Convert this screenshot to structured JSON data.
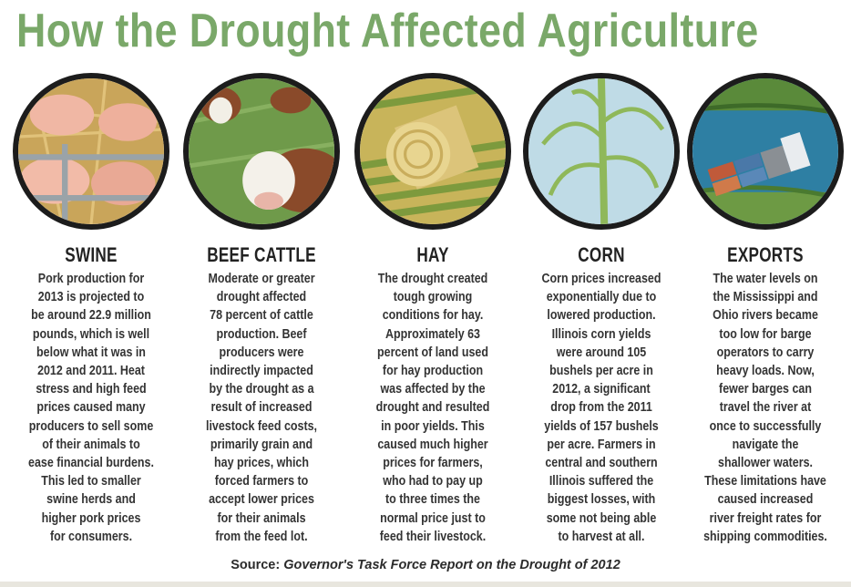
{
  "title": "How the Drought Affected Agriculture",
  "colors": {
    "title": "#7aa869",
    "text": "#2b2b2b",
    "circle_border": "#1c1c1c"
  },
  "sections": [
    {
      "icon": "swine-illustration",
      "heading": "SWINE",
      "lines": [
        "Pork production for",
        "2013 is projected to",
        "be around 22.9 million",
        "pounds, which is well",
        "below what it was in",
        "2012 and 2011. Heat",
        "stress and high feed",
        "prices caused many",
        "producers to sell some",
        "of their animals to",
        "ease financial burdens.",
        "This led to smaller",
        "swine herds and",
        "higher pork prices",
        "for consumers."
      ]
    },
    {
      "icon": "beef-cattle-illustration",
      "heading": "BEEF CATTLE",
      "lines": [
        "Moderate or greater",
        "drought affected",
        "78 percent of cattle",
        "production. Beef",
        "producers were",
        "indirectly impacted",
        "by the drought as a",
        "result of increased",
        "livestock feed costs,",
        "primarily grain and",
        "hay prices, which",
        "forced farmers to",
        "accept lower prices",
        "for their animals",
        "from the feed lot."
      ]
    },
    {
      "icon": "hay-bale-illustration",
      "heading": "HAY",
      "lines": [
        "The drought created",
        "tough growing",
        "conditions for hay.",
        "Approximately 63",
        "percent of land used",
        "for hay production",
        "was affected by the",
        "drought and resulted",
        "in poor yields. This",
        "caused much higher",
        "prices for farmers,",
        "who had to pay up",
        "to three times the",
        "normal price just to",
        "feed their livestock."
      ]
    },
    {
      "icon": "corn-stalk-illustration",
      "heading": "CORN",
      "lines": [
        "Corn prices increased",
        "exponentially due to",
        "lowered production.",
        "Illinois corn yields",
        "were around 105",
        "bushels per acre in",
        "2012, a significant",
        "drop from the 2011",
        "yields of 157 bushels",
        "per acre. Farmers in",
        "central and southern",
        "Illinois suffered the",
        "biggest losses, with",
        "some not being able",
        "to harvest at all."
      ]
    },
    {
      "icon": "river-barge-illustration",
      "heading": "EXPORTS",
      "lines": [
        "The water levels on",
        "the Mississippi and",
        "Ohio rivers became",
        "too low for barge",
        "operators to carry",
        "heavy loads. Now,",
        "fewer barges can",
        "travel the river at",
        "once to successfully",
        "navigate the",
        "shallower waters.",
        "These limitations have",
        "caused increased",
        "river freight rates for",
        "shipping commodities."
      ]
    }
  ],
  "source": {
    "label": "Source:",
    "text": "Governor's Task Force Report on the Drought of 2012"
  }
}
